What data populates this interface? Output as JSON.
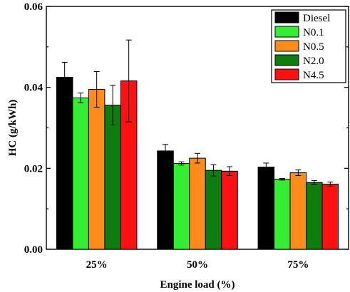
{
  "chart_data": {
    "type": "bar",
    "xlabel": "Engine load (%)",
    "ylabel": "HC (g/kWh)",
    "ylim": [
      0,
      0.06
    ],
    "yticks": [
      "0.00",
      "0.02",
      "0.04",
      "0.06"
    ],
    "ytick_values": [
      0,
      0.02,
      0.04,
      0.06
    ],
    "categories": [
      "25%",
      "50%",
      "75%"
    ],
    "legend_position": "top-right",
    "grid": false,
    "series": [
      {
        "name": "Diesel",
        "color": "#000000",
        "values": [
          0.0425,
          0.0243,
          0.0203
        ],
        "errors": [
          0.0037,
          0.0016,
          0.001
        ]
      },
      {
        "name": "N0.1",
        "color": "#33ee33",
        "values": [
          0.0374,
          0.0212,
          0.0173
        ],
        "errors": [
          0.0012,
          0.0004,
          0.0002
        ]
      },
      {
        "name": "N0.5",
        "color": "#ff8c1a",
        "values": [
          0.0395,
          0.0225,
          0.0189
        ],
        "errors": [
          0.0044,
          0.0012,
          0.0007
        ]
      },
      {
        "name": "N2.0",
        "color": "#0d7d0d",
        "values": [
          0.0356,
          0.0195,
          0.0165
        ],
        "errors": [
          0.0049,
          0.0014,
          0.0005
        ]
      },
      {
        "name": "N4.5",
        "color": "#ff1111",
        "values": [
          0.0416,
          0.0193,
          0.0161
        ],
        "errors": [
          0.0101,
          0.0011,
          0.0005
        ]
      }
    ]
  }
}
